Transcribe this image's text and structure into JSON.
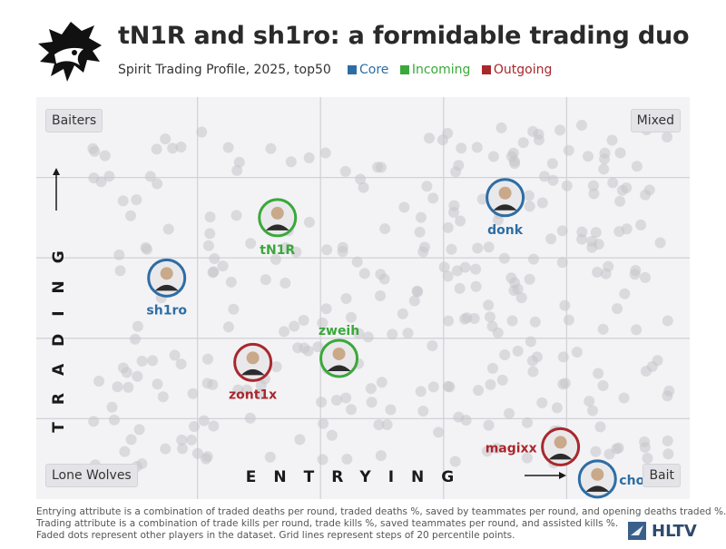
{
  "header": {
    "title": "tN1R and sh1ro: a formidable trading duo",
    "subtitle": "Spirit Trading Profile, 2025, top50",
    "logo_icon": "spirit-dragon-logo"
  },
  "legend": [
    {
      "label": "Core",
      "color": "#2e6da4"
    },
    {
      "label": "Incoming",
      "color": "#3aa83a"
    },
    {
      "label": "Outgoing",
      "color": "#a8282c"
    }
  ],
  "corners": {
    "top_left": "Baiters",
    "top_right": "Mixed",
    "bottom_left": "Lone Wolves",
    "bottom_right": "Bait"
  },
  "chart_data": {
    "type": "scatter",
    "title": "tN1R and sh1ro: a formidable trading duo",
    "subtitle": "Spirit Trading Profile, 2025, top50",
    "xlabel": "ENTRYING",
    "ylabel": "TRADING",
    "xlim": [
      0,
      100
    ],
    "ylim": [
      0,
      100
    ],
    "grid_step": 20,
    "series": [
      {
        "name": "Core",
        "color": "#2e6da4",
        "points": [
          {
            "label": "sh1ro",
            "x": 15,
            "y": 55
          },
          {
            "label": "donk",
            "x": 70,
            "y": 75
          },
          {
            "label": "chopper",
            "x": 85,
            "y": 5
          }
        ]
      },
      {
        "name": "Incoming",
        "color": "#3aa83a",
        "points": [
          {
            "label": "tN1R",
            "x": 33,
            "y": 70
          },
          {
            "label": "zweih",
            "x": 43,
            "y": 35
          }
        ]
      },
      {
        "name": "Outgoing",
        "color": "#a8282c",
        "points": [
          {
            "label": "zont1x",
            "x": 29,
            "y": 34
          },
          {
            "label": "magixx",
            "x": 79,
            "y": 13
          }
        ]
      }
    ]
  },
  "footnote": {
    "line1": "Entrying attribute is a combination of traded deaths per round, traded deaths %, saved by teammates per round, and opening deaths traded %.",
    "line2": "Trading attribute is a combination of trade kills per round, trade kills %, saved teammates per round, and assisted kills %.",
    "line3": "Faded dots represent other players in the dataset. Grid lines represent steps of 20 percentile points."
  },
  "brand": {
    "name": "HLTV",
    "icon": "hltv-logo"
  }
}
